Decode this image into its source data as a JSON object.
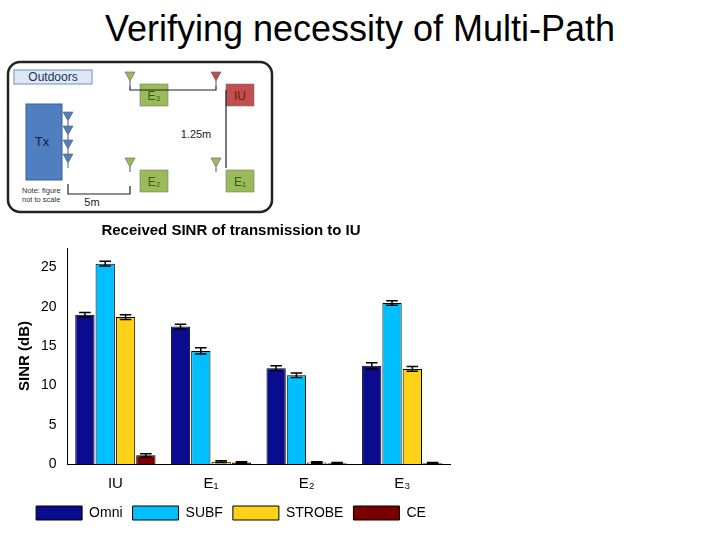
{
  "slide_title": "Verifying necessity of Multi-Path",
  "diagram": {
    "setting": "Outdoors",
    "transmitter": "Tx",
    "nodes": [
      {
        "label": "E₃"
      },
      {
        "label": "IU"
      },
      {
        "label": "E₂"
      },
      {
        "label": "E₁"
      }
    ],
    "distances": [
      "1.25m",
      "5m"
    ],
    "note": [
      "Note: figure",
      "not to scale"
    ]
  },
  "chart_data": {
    "type": "bar",
    "title": "Received SINR of transmission to IU",
    "y_label": "SINR (dB)",
    "categories": [
      "IU",
      "E₁",
      "E₂",
      "E₃"
    ],
    "series": [
      {
        "name": "Omni",
        "color": "#0b0b8f",
        "values": [
          19.0,
          17.5,
          12.2,
          12.5
        ],
        "errors": [
          0.3,
          0.3,
          0.3,
          0.4
        ]
      },
      {
        "name": "SUBF",
        "color": "#00bfff",
        "values": [
          25.5,
          14.4,
          11.3,
          20.5
        ],
        "errors": [
          0.3,
          0.4,
          0.3,
          0.3
        ]
      },
      {
        "name": "STROBE",
        "color": "#ffd21a",
        "values": [
          18.7,
          0.3,
          0.2,
          12.1
        ],
        "errors": [
          0.3,
          0.1,
          0.1,
          0.3
        ]
      },
      {
        "name": "CE",
        "color": "#7a0000",
        "values": [
          1.1,
          0.2,
          0.1,
          0.1
        ],
        "errors": [
          0.2,
          0.1,
          0.1,
          0.1
        ]
      }
    ],
    "ylim": [
      0,
      27.5
    ],
    "yticks": [
      0,
      5,
      10,
      15,
      20,
      25
    ],
    "grid": false,
    "legend": "bottom"
  }
}
